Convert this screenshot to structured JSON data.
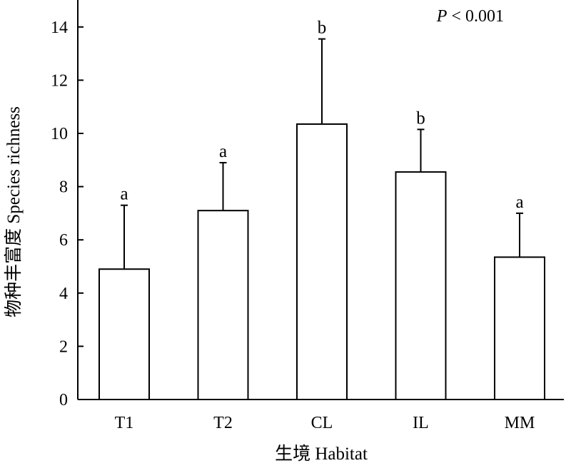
{
  "chart_data": {
    "type": "bar",
    "categories": [
      "T1",
      "T2",
      "CL",
      "IL",
      "MM"
    ],
    "values": [
      4.9,
      7.1,
      10.35,
      8.55,
      5.35
    ],
    "error_upper": [
      7.3,
      8.9,
      13.55,
      10.15,
      7.0
    ],
    "significance_letters": [
      "a",
      "a",
      "b",
      "b",
      "a"
    ],
    "xlabel": "生境 Habitat",
    "ylabel": "物种丰富度 Species richness",
    "yticks": [
      "0",
      "2",
      "4",
      "6",
      "8",
      "10",
      "12",
      "14"
    ],
    "ylim": [
      0,
      15
    ],
    "annotation": {
      "italic": "P",
      "rest": " < 0.001"
    },
    "grid": false,
    "legend": "none",
    "bar_fill": "#ffffff",
    "stroke_color": "#000000"
  }
}
